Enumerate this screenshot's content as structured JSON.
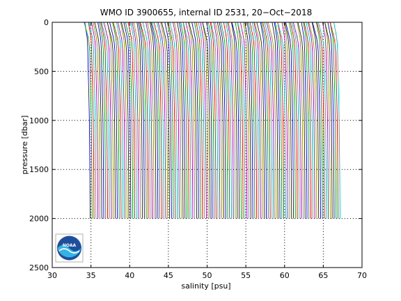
{
  "chart_data": {
    "type": "line",
    "title": "WMO ID 3900655, internal ID 2531, 20−Oct−2018",
    "xlabel": "salinity [psu]",
    "ylabel": "pressure [dbar]",
    "xlim": [
      30,
      70
    ],
    "ylim": [
      0,
      2500
    ],
    "y_reversed": true,
    "grid": true,
    "grid_style": "dotted",
    "xticks": [
      30,
      35,
      40,
      45,
      50,
      55,
      60,
      65,
      70
    ],
    "yticks": [
      0,
      500,
      1000,
      1500,
      2000,
      2500
    ],
    "series_colors": [
      "#0000ff",
      "#00aa00",
      "#ff0000",
      "#00bfbf",
      "#bf00bf",
      "#999900",
      "#222222"
    ],
    "profile_count": 130,
    "offset_first": 0,
    "offset_step": 0.25,
    "profile_shape": {
      "pressure": [
        0,
        50,
        100,
        150,
        200,
        300,
        400,
        500,
        700,
        1000,
        1500,
        2000
      ],
      "salinity": [
        34.2,
        34.3,
        34.4,
        34.5,
        34.55,
        34.6,
        34.62,
        34.65,
        34.72,
        34.8,
        34.86,
        34.9
      ]
    }
  },
  "logo": {
    "text": "NOAA"
  }
}
